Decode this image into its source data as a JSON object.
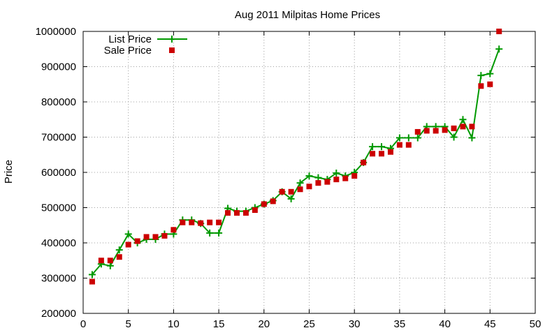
{
  "chart_data": {
    "type": "line",
    "title": "Aug 2011 Milpitas Home Prices",
    "xlabel": "",
    "ylabel": "Price",
    "xlim": [
      0,
      50
    ],
    "ylim": [
      200000,
      1000000
    ],
    "x_ticks": [
      0,
      5,
      10,
      15,
      20,
      25,
      30,
      35,
      40,
      45,
      50
    ],
    "y_ticks": [
      200000,
      300000,
      400000,
      500000,
      600000,
      700000,
      800000,
      900000,
      1000000
    ],
    "grid": true,
    "legend_position": "top-left",
    "series": [
      {
        "name": "List Price",
        "style": "line+plus",
        "color": "#009900",
        "x": [
          1,
          2,
          3,
          4,
          5,
          6,
          7,
          8,
          9,
          10,
          11,
          12,
          13,
          14,
          15,
          16,
          17,
          18,
          19,
          20,
          21,
          22,
          23,
          24,
          25,
          26,
          27,
          28,
          29,
          30,
          31,
          32,
          33,
          34,
          35,
          36,
          37,
          38,
          39,
          40,
          41,
          42,
          43,
          44,
          45,
          46
        ],
        "values": [
          310000,
          340000,
          335000,
          380000,
          425000,
          400000,
          410000,
          410000,
          425000,
          425000,
          465000,
          465000,
          455000,
          428000,
          428000,
          498000,
          490000,
          490000,
          500000,
          510000,
          520000,
          545000,
          525000,
          570000,
          590000,
          585000,
          580000,
          598000,
          590000,
          600000,
          628000,
          673000,
          673000,
          668000,
          698000,
          698000,
          698000,
          730000,
          730000,
          730000,
          700000,
          750000,
          698000,
          875000,
          880000,
          950000
        ]
      },
      {
        "name": "Sale Price",
        "style": "square",
        "color": "#cc0000",
        "x": [
          1,
          2,
          3,
          4,
          5,
          6,
          7,
          8,
          9,
          10,
          11,
          12,
          13,
          14,
          15,
          16,
          17,
          18,
          19,
          20,
          21,
          22,
          23,
          24,
          25,
          26,
          27,
          28,
          29,
          30,
          31,
          32,
          33,
          34,
          35,
          36,
          37,
          38,
          39,
          40,
          41,
          42,
          43,
          44,
          45,
          46
        ],
        "values": [
          290000,
          350000,
          350000,
          360000,
          395000,
          405000,
          417000,
          417000,
          420000,
          437000,
          458000,
          458000,
          456000,
          458000,
          458000,
          485000,
          485000,
          485000,
          493000,
          510000,
          518000,
          545000,
          545000,
          552000,
          560000,
          570000,
          573000,
          580000,
          583000,
          590000,
          628000,
          653000,
          653000,
          658000,
          678000,
          678000,
          715000,
          718000,
          718000,
          720000,
          725000,
          730000,
          730000,
          845000,
          850000,
          1000000
        ]
      }
    ]
  }
}
